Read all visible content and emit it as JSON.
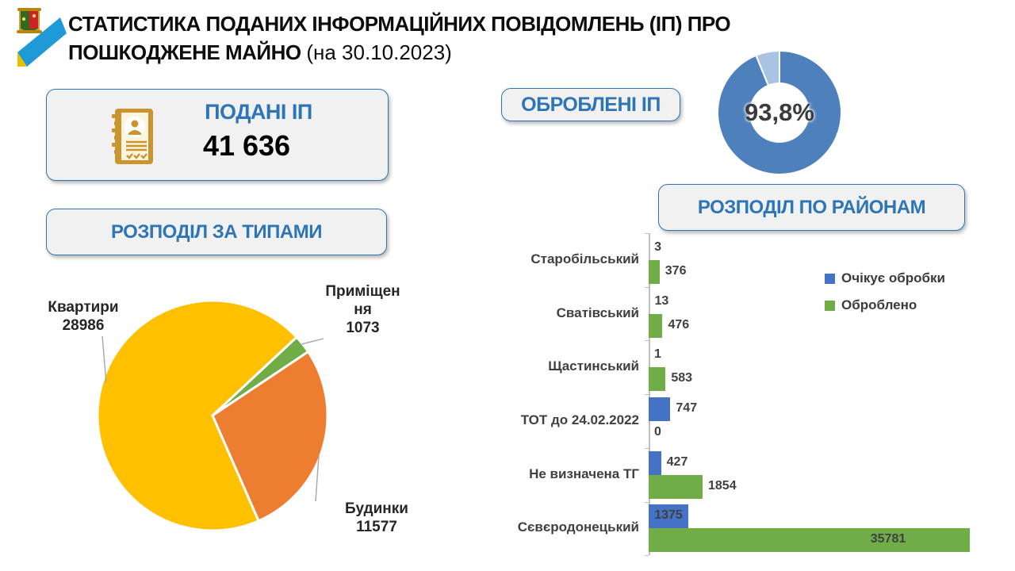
{
  "header": {
    "title_line1": "СТАТИСТИКА ПОДАНИХ ІНФОРМАЦІЙНИХ ПОВІДОМЛЕНЬ (ІП) ПРО",
    "title_line2": "ПОШКОДЖЕНЕ МАЙНО",
    "title_date": "(на 30.10.2023)",
    "logo": "coat-of-arms-with-blue-yellow-ribbon"
  },
  "submitted": {
    "label": "ПОДАНІ ІП",
    "value": "41 636",
    "icon": "document-person-checklist-icon",
    "icon_color": "#c9952c"
  },
  "processed": {
    "label": "ОБРОБЛЕНІ ІП",
    "pct_label": "93,8%"
  },
  "type_section": {
    "label": "РОЗПОДІЛ ЗА ТИПАМИ"
  },
  "district_section": {
    "label": "РОЗПОДІЛ ПО РАЙОНАМ"
  },
  "colors": {
    "accent_blue": "#2e75b6",
    "donut_main": "#4e80bc",
    "donut_rest": "#a9c3e3",
    "bar_blue": "#4472c4",
    "bar_green": "#70ad47",
    "pie_yellow": "#ffc000",
    "pie_orange": "#ed7d31",
    "pie_green": "#70ad47",
    "label_gray": "#404040",
    "axis_gray": "#bfbfbf"
  },
  "chart_data": [
    {
      "type": "pie",
      "title": "РОЗПОДІЛ ЗА ТИПАМИ",
      "total": 41636,
      "start_angle_deg": 47,
      "draw_order": [
        2,
        1,
        0
      ],
      "slices": [
        {
          "label": "Квартири",
          "value": 28986,
          "color": "#ffc000",
          "label_lines": [
            "Квартири",
            "28986"
          ]
        },
        {
          "label": "Будинки",
          "value": 11577,
          "color": "#ed7d31",
          "label_lines": [
            "Будинки",
            "11577"
          ]
        },
        {
          "label": "Приміщення",
          "value": 1073,
          "color": "#70ad47",
          "label_lines": [
            "Приміщен",
            "ня",
            "1073"
          ]
        }
      ]
    },
    {
      "type": "donut",
      "title": "ОБРОБЛЕНІ ІП",
      "value_pct": 93.8,
      "label": "93,8%",
      "segments": [
        {
          "name": "оброблено",
          "pct": 93.8,
          "color": "#4e80bc"
        },
        {
          "name": "решта",
          "pct": 6.2,
          "color": "#a9c3e3"
        }
      ]
    },
    {
      "type": "bar",
      "orientation": "horizontal",
      "title": "РОЗПОДІЛ ПО РАЙОНАМ",
      "categories": [
        "Старобільський",
        "Сватівський",
        "Щастинський",
        "ТОТ до 24.02.2022",
        "Не визначена ТГ",
        "Сєвєродонецький"
      ],
      "series": [
        {
          "name": "Очікує обробки",
          "color": "#4472c4",
          "values": [
            3,
            13,
            1,
            747,
            427,
            1375
          ]
        },
        {
          "name": "Оброблено",
          "color": "#70ad47",
          "values": [
            376,
            476,
            583,
            0,
            1854,
            35781
          ]
        }
      ],
      "value_labels": true,
      "legend_position": "top-right",
      "axis_clip_max": 11050,
      "grid": false
    }
  ]
}
